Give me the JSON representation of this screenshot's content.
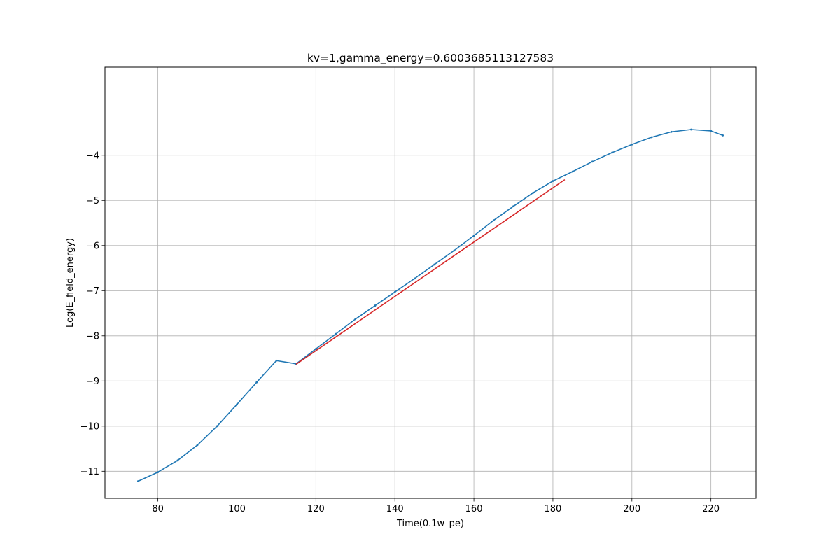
{
  "chart_data": {
    "type": "line",
    "title": "kv=1,gamma_energy=0.6003685113127583",
    "xlabel": "Time(0.1w_pe)",
    "ylabel": "Log(E_field_energy)",
    "xlim": [
      66.6,
      231.4
    ],
    "ylim": [
      -11.6,
      -2.05
    ],
    "x_ticks": [
      80,
      100,
      120,
      140,
      160,
      180,
      200,
      220
    ],
    "x_tick_labels": [
      "80",
      "100",
      "120",
      "140",
      "160",
      "180",
      "200",
      "220"
    ],
    "y_ticks": [
      -4,
      -5,
      -6,
      -7,
      -8,
      -9,
      -10,
      -11
    ],
    "y_tick_labels": [
      "−4",
      "−5",
      "−6",
      "−7",
      "−8",
      "−9",
      "−10",
      "−11"
    ],
    "grid": true,
    "legend": "none",
    "series": [
      {
        "color": "#1f77b4",
        "marker": "dot",
        "x": [
          75,
          80,
          85,
          90,
          95,
          100,
          105,
          110,
          115,
          120,
          125,
          130,
          135,
          140,
          145,
          150,
          155,
          160,
          165,
          170,
          175,
          180,
          185,
          190,
          195,
          200,
          205,
          210,
          215,
          220,
          223
        ],
        "y": [
          -11.22,
          -11.02,
          -10.76,
          -10.42,
          -10.0,
          -9.52,
          -9.03,
          -8.55,
          -8.62,
          -8.29,
          -7.96,
          -7.63,
          -7.33,
          -7.03,
          -6.73,
          -6.42,
          -6.11,
          -5.78,
          -5.44,
          -5.13,
          -4.83,
          -4.57,
          -4.36,
          -4.14,
          -3.94,
          -3.76,
          -3.6,
          -3.48,
          -3.43,
          -3.46,
          -3.56
        ]
      },
      {
        "color": "#d62728",
        "marker": "none",
        "x": [
          115,
          183
        ],
        "y": [
          -8.63,
          -4.54
        ]
      }
    ]
  }
}
